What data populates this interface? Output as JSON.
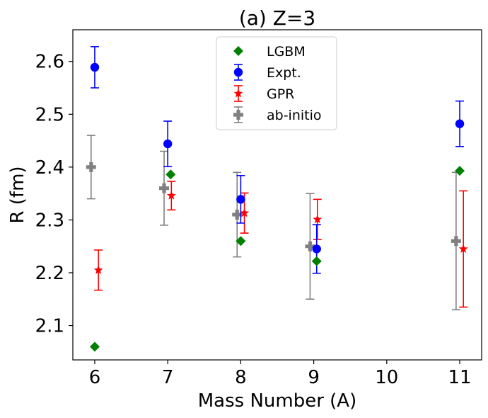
{
  "chart_data": {
    "type": "scatter",
    "title": "(a) Z=3",
    "xlabel": "Mass Number (A)",
    "ylabel": "R (fm)",
    "xlim": [
      5.7,
      11.3
    ],
    "ylim": [
      2.035,
      2.66
    ],
    "xticks": [
      6,
      7,
      8,
      9,
      10,
      11
    ],
    "yticks": [
      2.1,
      2.2,
      2.3,
      2.4,
      2.5,
      2.6
    ],
    "xtick_labels": [
      "6",
      "7",
      "8",
      "9",
      "10",
      "11"
    ],
    "ytick_labels": [
      "2.1",
      "2.2",
      "2.3",
      "2.4",
      "2.5",
      "2.6"
    ],
    "legend_position": "upper-center",
    "series": [
      {
        "name": "LGBM",
        "marker": "diamond",
        "color": "#008000",
        "x": [
          6,
          7.04,
          8.0,
          9.04,
          11.0
        ],
        "y": [
          2.06,
          2.386,
          2.26,
          2.222,
          2.393
        ]
      },
      {
        "name": "Expt.",
        "marker": "circle",
        "color": "#0000ff",
        "x": [
          6,
          7,
          8,
          9.04,
          11
        ],
        "y": [
          2.589,
          2.444,
          2.339,
          2.245,
          2.482
        ],
        "err": [
          0.039,
          0.043,
          0.045,
          0.046,
          0.043
        ]
      },
      {
        "name": "GPR",
        "marker": "star",
        "color": "#ff0000",
        "x": [
          6.05,
          7.05,
          8.05,
          9.05,
          11.05
        ],
        "y": [
          2.205,
          2.346,
          2.313,
          2.301,
          2.245
        ],
        "err": [
          0.038,
          0.027,
          0.038,
          0.038,
          0.11
        ]
      },
      {
        "name": "ab-initio",
        "marker": "plus",
        "color": "#808080",
        "x": [
          5.95,
          6.95,
          7.95,
          8.95,
          10.95
        ],
        "y": [
          2.4,
          2.36,
          2.31,
          2.25,
          2.26
        ],
        "err": [
          0.06,
          0.07,
          0.08,
          0.1,
          0.13
        ]
      }
    ]
  }
}
